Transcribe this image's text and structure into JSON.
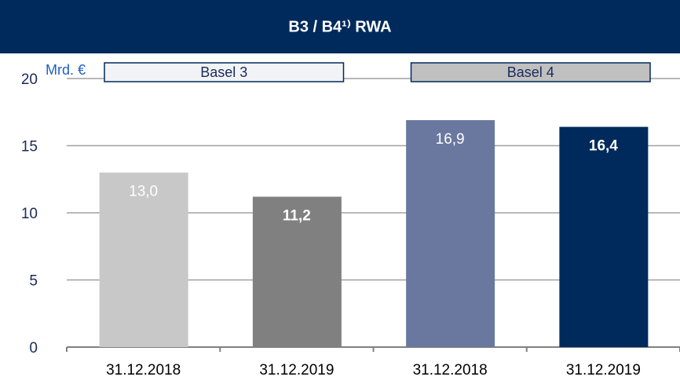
{
  "chart_data": {
    "type": "bar",
    "title": "B3 / B4¹⁾ RWA",
    "y_label": "Mrd. €",
    "categories": [
      "31.12.2018",
      "31.12.2019",
      "31.12.2018",
      "31.12.2019"
    ],
    "values": [
      13.0,
      11.2,
      16.9,
      16.4
    ],
    "value_labels": [
      "13,0",
      "11,2",
      "16,9",
      "16,4"
    ],
    "label_bold": [
      false,
      true,
      false,
      true
    ],
    "colors": [
      "#c8c8c8",
      "#808080",
      "#6a78a0",
      "#002a5c"
    ],
    "groups": [
      {
        "name": "Basel 3",
        "color": "#f2f3f6"
      },
      {
        "name": "Basel 4",
        "color": "#c0c0c0"
      }
    ],
    "ylim": [
      0,
      20
    ],
    "yticks": [
      0,
      5,
      10,
      15,
      20
    ],
    "grid": true
  }
}
